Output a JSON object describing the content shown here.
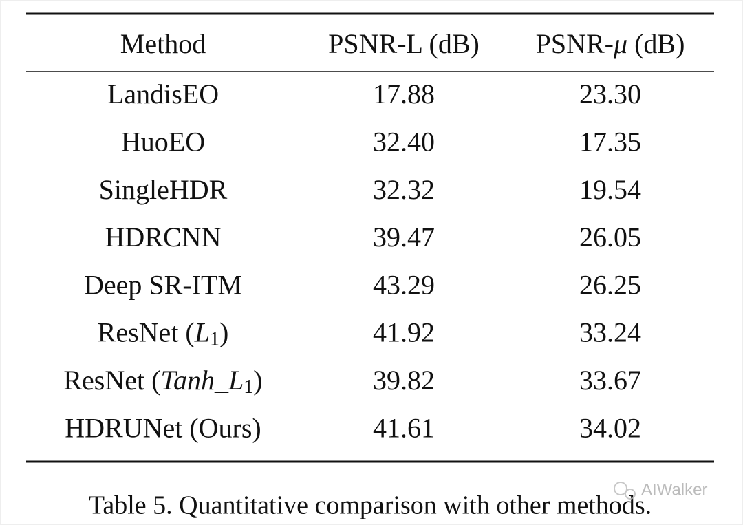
{
  "table": {
    "header": [
      "Method",
      "PSNR-L (dB)",
      [
        {
          "text": "PSNR-"
        },
        {
          "text": "μ",
          "math": true
        },
        {
          "text": " (dB)"
        }
      ]
    ],
    "rows": [
      [
        "LandisEO",
        "17.88",
        "23.30"
      ],
      [
        "HuoEO",
        "32.40",
        "17.35"
      ],
      [
        "SingleHDR",
        "32.32",
        "19.54"
      ],
      [
        "HDRCNN",
        "39.47",
        "26.05"
      ],
      [
        "Deep SR-ITM",
        "43.29",
        "26.25"
      ],
      [
        [
          {
            "text": "ResNet ("
          },
          {
            "text": "L",
            "math": true
          },
          {
            "text": "1",
            "sub": true
          },
          {
            "text": ")"
          }
        ],
        "41.92",
        "33.24"
      ],
      [
        [
          {
            "text": "ResNet ("
          },
          {
            "text": "Tanh",
            "math": true
          },
          {
            "text": "_"
          },
          {
            "text": "L",
            "math": true
          },
          {
            "text": "1",
            "sub": true
          },
          {
            "text": ")"
          }
        ],
        "39.82",
        "33.67"
      ],
      [
        "HDRUNet (Ours)",
        "41.61",
        "34.02"
      ]
    ]
  },
  "caption": "Table 5. Quantitative comparison with other methods.",
  "watermark": "AIWalker"
}
